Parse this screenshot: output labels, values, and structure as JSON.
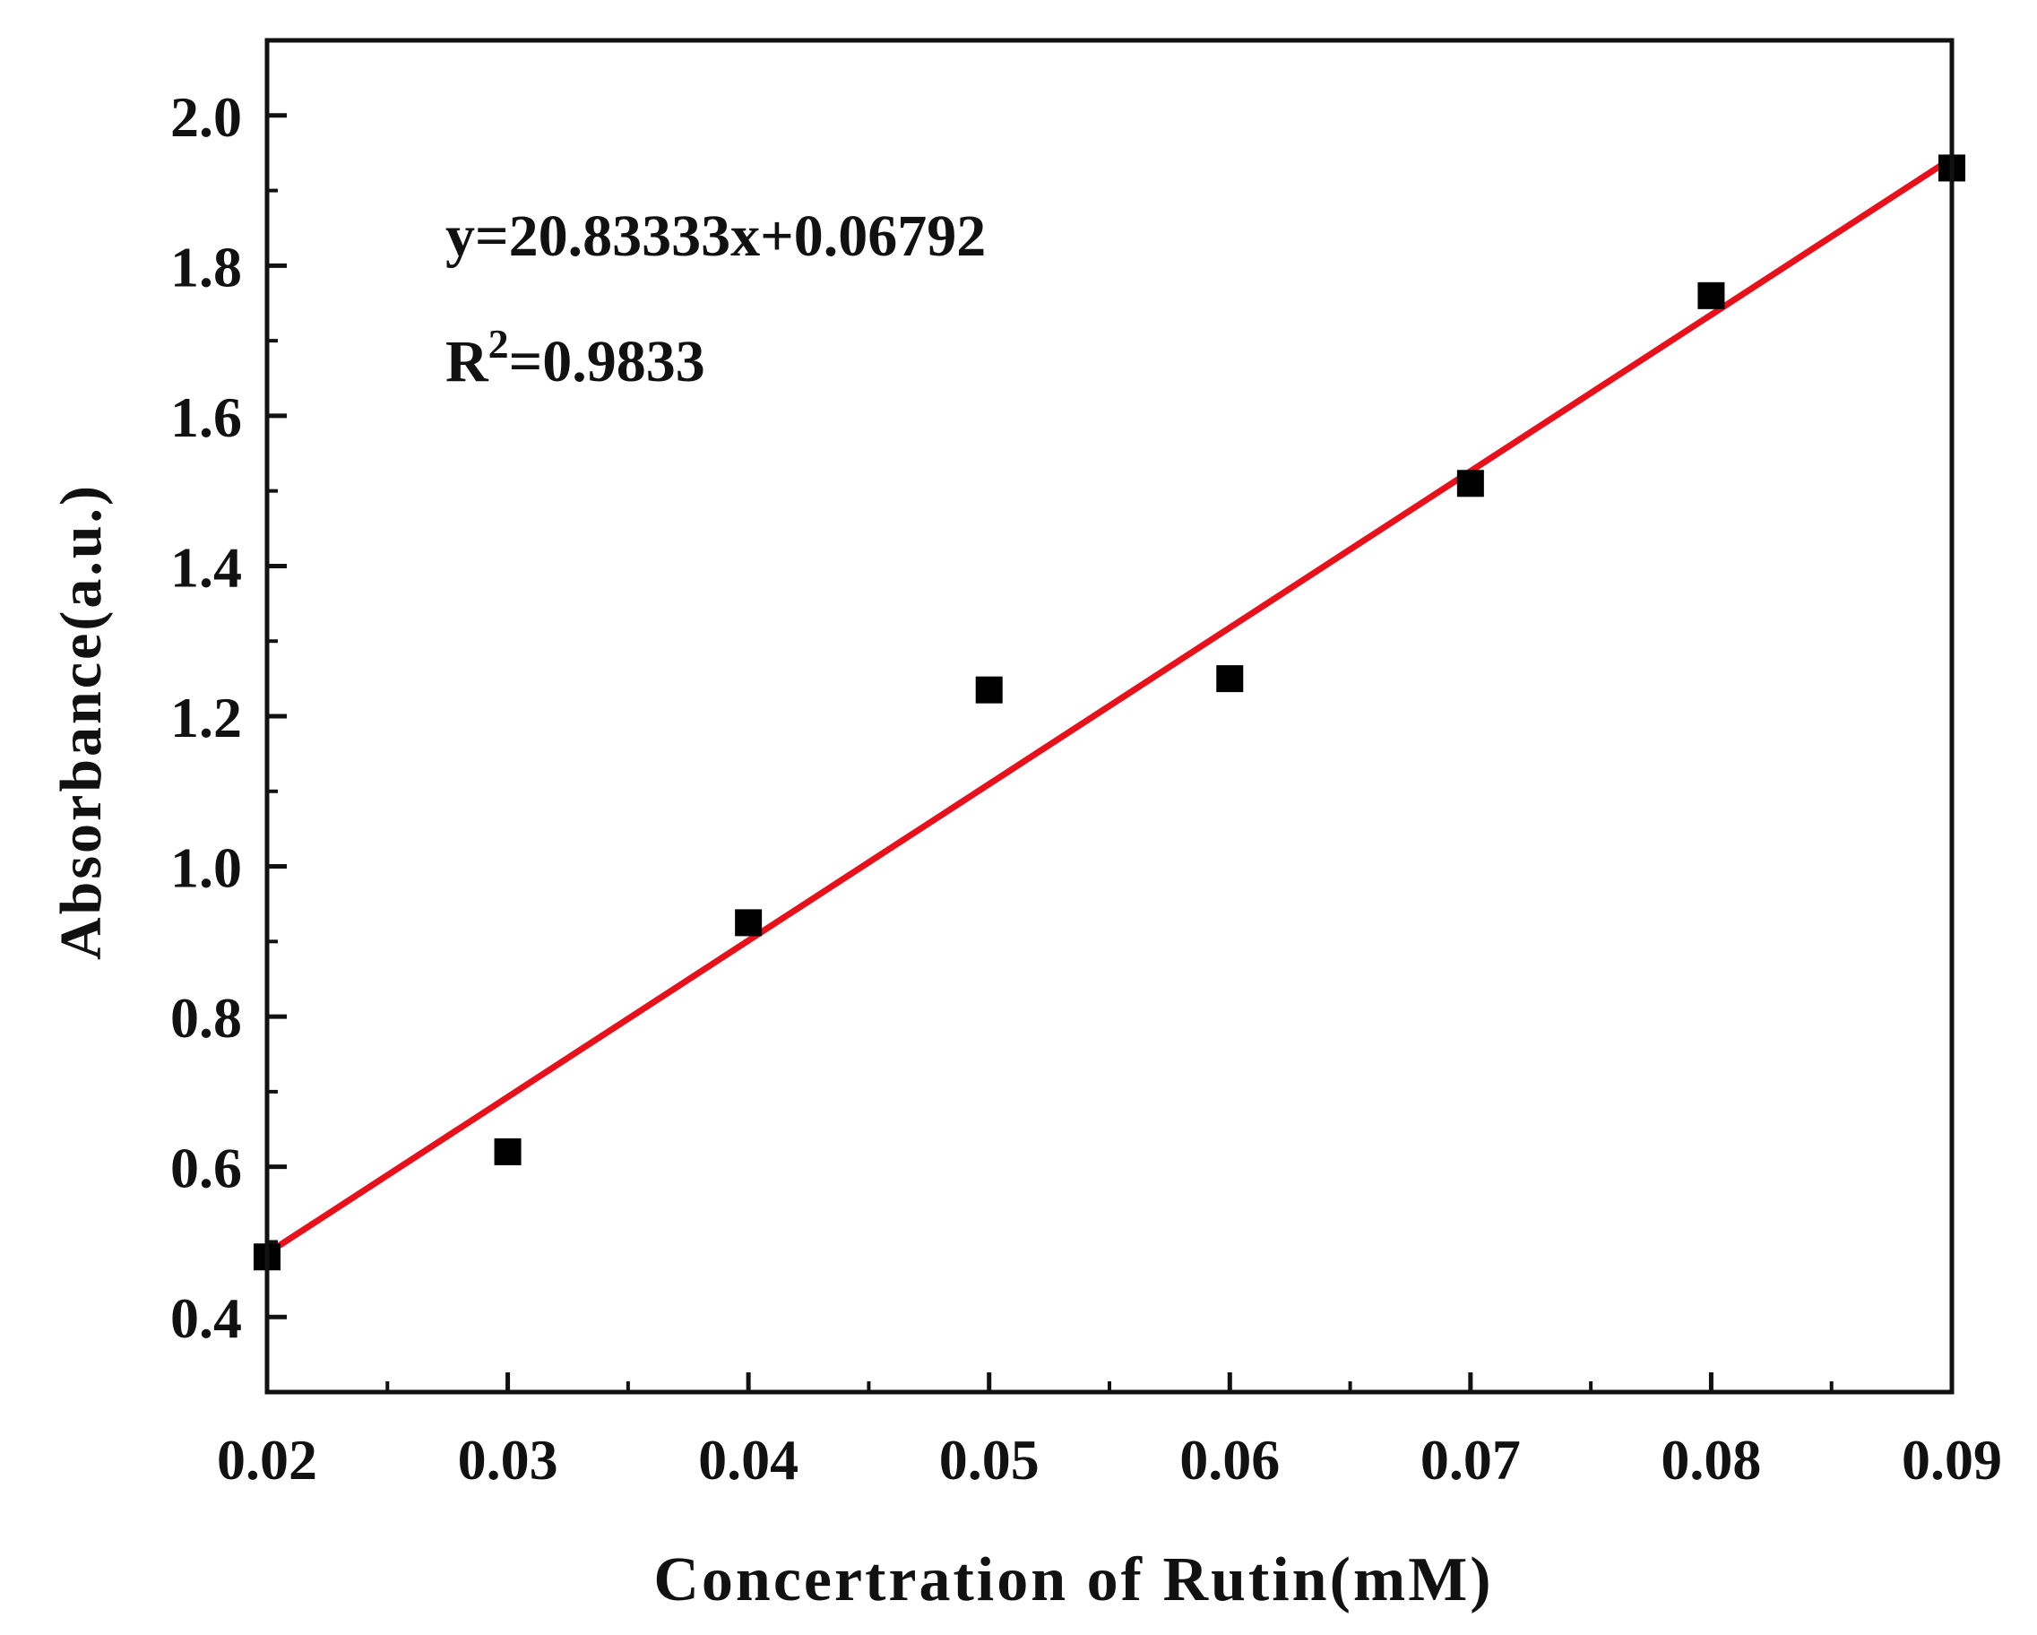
{
  "chart_data": {
    "type": "scatter",
    "xlabel": "Concertration of Rutin(mM)",
    "ylabel": "Absorbance(a.u.)",
    "xlim": [
      0.02,
      0.09
    ],
    "ylim": [
      0.3,
      2.1
    ],
    "x_ticks": [
      0.02,
      0.03,
      0.04,
      0.05,
      0.06,
      0.07,
      0.08,
      0.09
    ],
    "x_tick_labels": [
      "0.02",
      "0.03",
      "0.04",
      "0.05",
      "0.06",
      "0.07",
      "0.08",
      "0.09"
    ],
    "y_ticks": [
      0.4,
      0.6,
      0.8,
      1.0,
      1.2,
      1.4,
      1.6,
      1.8,
      2.0
    ],
    "y_tick_labels": [
      "0.4",
      "0.6",
      "0.8",
      "1.0",
      "1.2",
      "1.4",
      "1.6",
      "1.8",
      "2.0"
    ],
    "grid": false,
    "series": [
      {
        "marker": "square",
        "color": "#000000",
        "x": [
          0.02,
          0.03,
          0.04,
          0.05,
          0.06,
          0.07,
          0.08,
          0.09
        ],
        "y": [
          0.48,
          0.62,
          0.925,
          1.235,
          1.25,
          1.51,
          1.76,
          1.93
        ]
      }
    ],
    "fit_line": {
      "color": "#e8101a",
      "slope": 20.83333,
      "intercept": 0.06792,
      "x_range": [
        0.02,
        0.09
      ]
    },
    "annotations": {
      "equation": "y=20.83333x+0.06792",
      "r2_base": "R",
      "r2_sup": "2",
      "r2_value": "=0.9833"
    }
  }
}
